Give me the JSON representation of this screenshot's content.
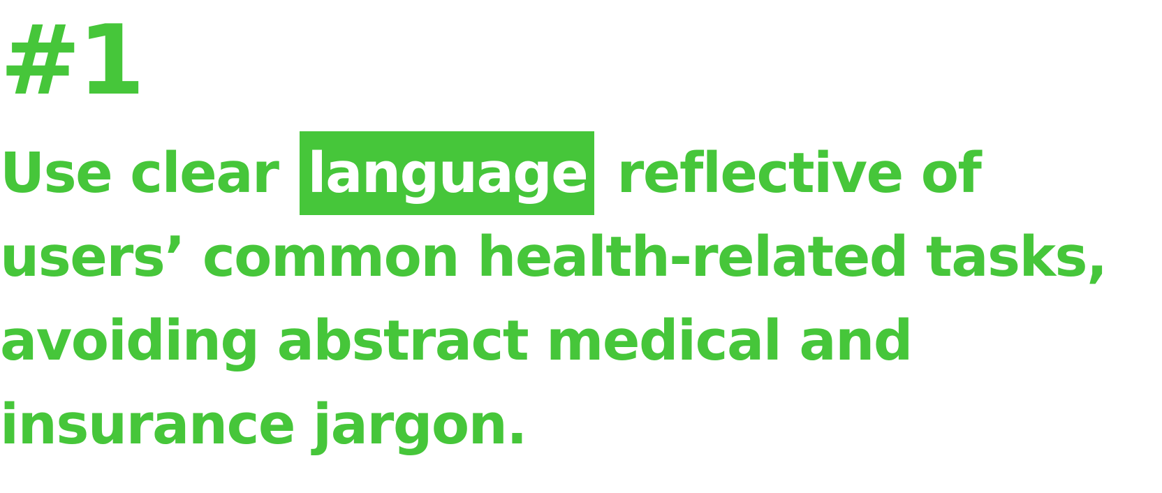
{
  "heading": {
    "number": "#1"
  },
  "statement": {
    "line1_before": "Use clear",
    "highlight": "language",
    "line1_after": "reflective of",
    "line2": "users’ common health-related tasks,",
    "line3": "avoiding abstract medical and",
    "line4": "insurance jargon."
  },
  "colors": {
    "accent": "#46c63a",
    "highlight_text": "#ffffff",
    "background": "#ffffff"
  }
}
